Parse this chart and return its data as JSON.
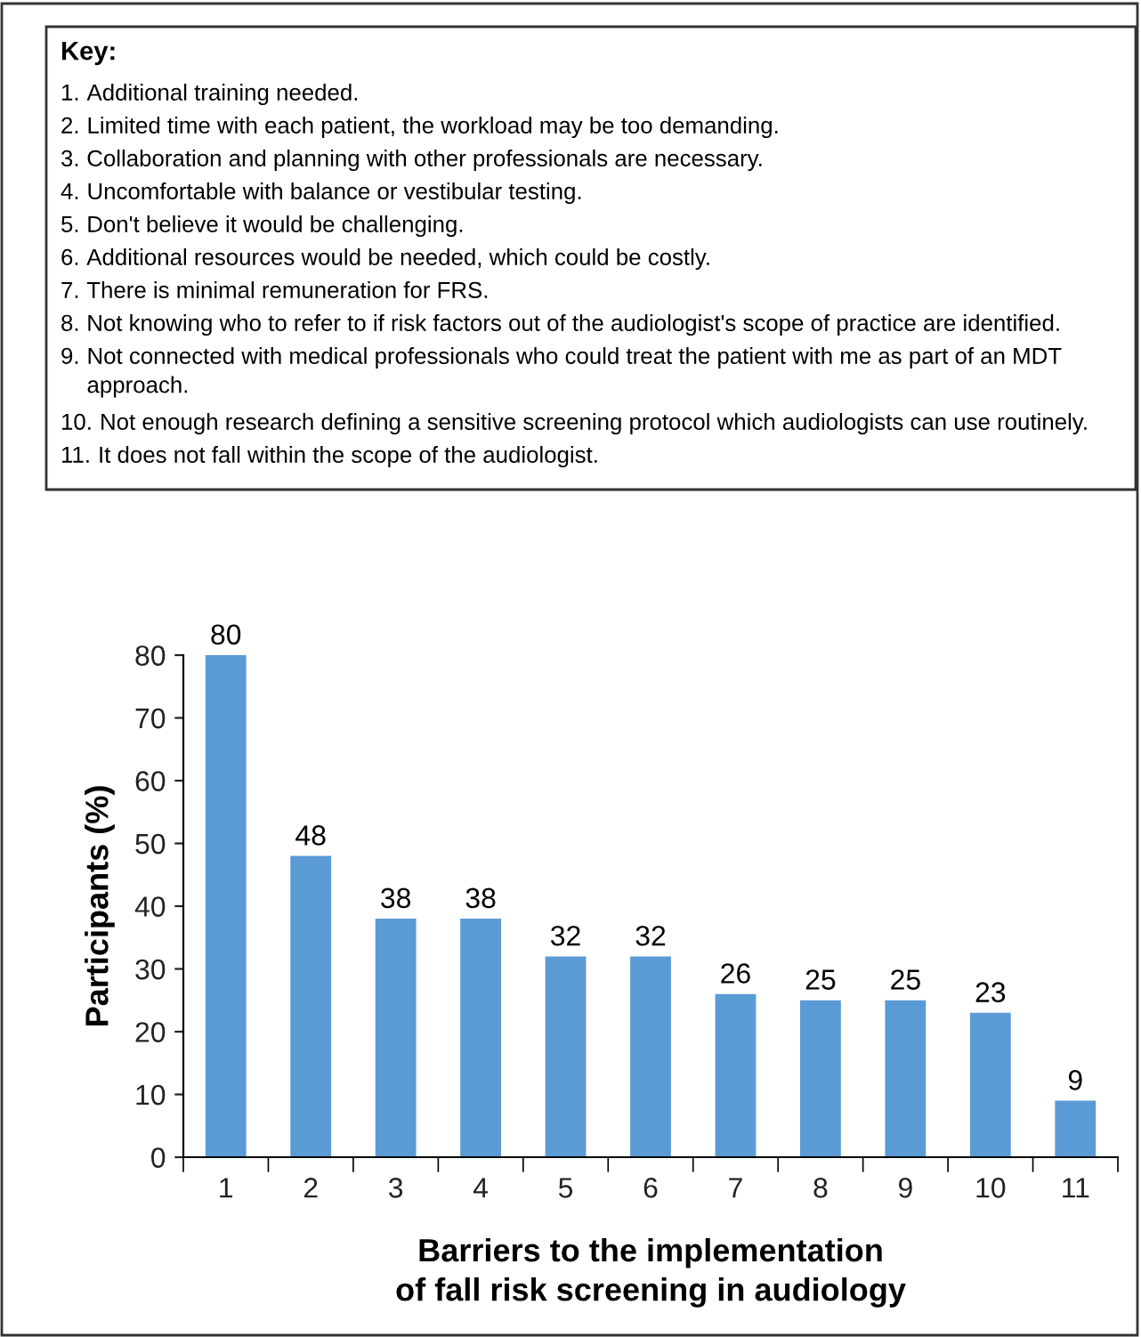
{
  "chart_data": {
    "type": "bar",
    "title": "Key:",
    "annotations": [
      "1. Additional training needed.",
      "2. Limited time with each patient, the workload may be too demanding.",
      "3. Collaboration and planning with other professionals are necessary.",
      "4. Uncomfortable with balance or vestibular testing.",
      "5. Don't believe it would be challenging.",
      "6. Additional resources would be needed, which could be costly.",
      "7. There is minimal remuneration for FRS.",
      "8. Not knowing who to refer to if risk factors out of the audiologist's scope of practice are identified.",
      "9. Not connected with medical professionals who could treat the patient with me as part of an MDT approach.",
      "10. Not enough research defining a sensitive screening protocol which audiologists can use routinely.",
      "11. It does not fall within the scope of the audiologist."
    ],
    "xlabel": "Barriers to the implementation\nof fall risk screening in audiology",
    "ylabel": "Participants (%)",
    "categories": [
      "1",
      "2",
      "3",
      "4",
      "5",
      "6",
      "7",
      "8",
      "9",
      "10",
      "11"
    ],
    "values": [
      80,
      48,
      38,
      38,
      32,
      32,
      26,
      25,
      25,
      23,
      9
    ],
    "color": "#5b9bd5",
    "ylim": [
      0,
      80
    ],
    "yticks": [
      0,
      10,
      20,
      30,
      40,
      50,
      60,
      70,
      80
    ],
    "data_labels": true,
    "grid": false,
    "legend": false
  }
}
